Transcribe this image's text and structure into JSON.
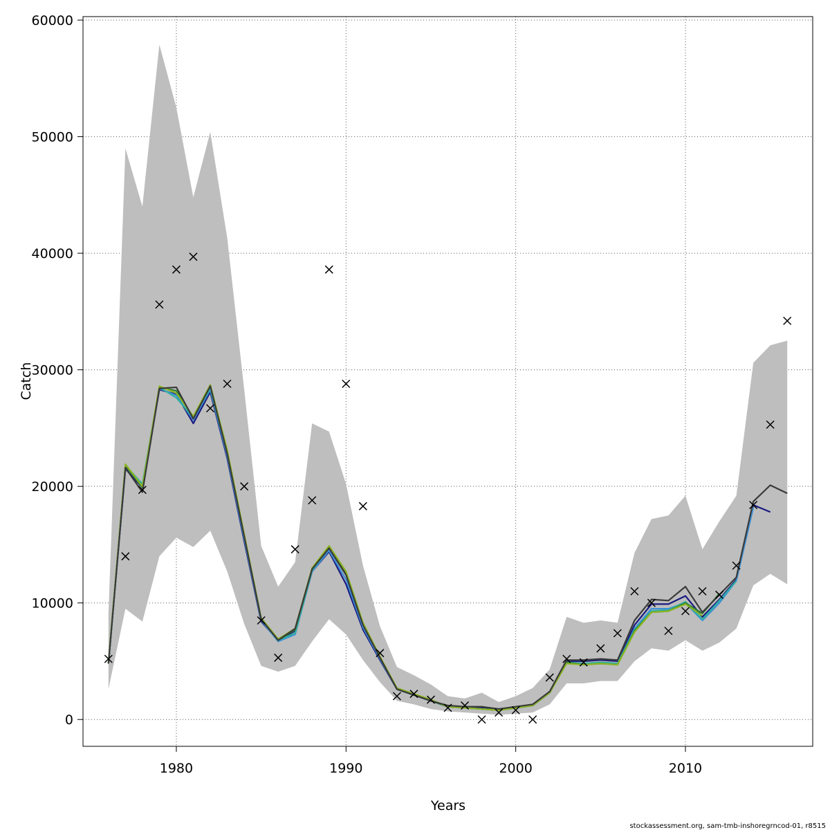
{
  "chart_data": {
    "type": "line",
    "xlabel": "Years",
    "ylabel": "Catch",
    "xlim": [
      1974.5,
      2017.5
    ],
    "ylim": [
      -2300,
      60300
    ],
    "xticks": [
      1980,
      1990,
      2000,
      2010
    ],
    "yticks": [
      0,
      10000,
      20000,
      30000,
      40000,
      50000,
      60000
    ],
    "grid": true,
    "footer": "stockassessment.org, sam-tmb-inshoregrncod-01, r8515",
    "colors": {
      "band": "#bebebe",
      "main": "#3a3a3a",
      "observed": "#000000"
    },
    "confidence_band": {
      "years": [
        1976,
        1977,
        1978,
        1979,
        1980,
        1981,
        1982,
        1983,
        1984,
        1985,
        1986,
        1987,
        1988,
        1989,
        1990,
        1991,
        1992,
        1993,
        1994,
        1995,
        1996,
        1997,
        1998,
        1999,
        2000,
        2001,
        2002,
        2003,
        2004,
        2005,
        2006,
        2007,
        2008,
        2009,
        2010,
        2011,
        2012,
        2013,
        2014,
        2015,
        2016
      ],
      "lower": [
        2600,
        9500,
        8400,
        14000,
        15600,
        14800,
        16200,
        12700,
        8200,
        4600,
        4100,
        4600,
        6700,
        8600,
        7300,
        5100,
        3200,
        1600,
        1300,
        900,
        700,
        600,
        500,
        400,
        500,
        600,
        1300,
        3100,
        3100,
        3300,
        3300,
        5000,
        6100,
        5900,
        6800,
        5900,
        6600,
        7800,
        11500,
        12500,
        11600
      ],
      "upper": [
        9000,
        49000,
        44000,
        57900,
        52500,
        44800,
        50400,
        41300,
        28300,
        14900,
        11400,
        13500,
        25400,
        24700,
        20200,
        13200,
        8000,
        4500,
        3800,
        3000,
        2000,
        1800,
        2300,
        1500,
        2000,
        2700,
        4300,
        8800,
        8300,
        8500,
        8300,
        14300,
        17200,
        17500,
        19200,
        14600,
        17000,
        19200,
        30600,
        32100,
        32500
      ]
    },
    "series": [
      {
        "name": "main",
        "color": "#3a3a3a",
        "years": [
          1976,
          1977,
          1978,
          1979,
          1980,
          1981,
          1982,
          1983,
          1984,
          1985,
          1986,
          1987,
          1988,
          1989,
          1990,
          1991,
          1992,
          1993,
          1994,
          1995,
          1996,
          1997,
          1998,
          1999,
          2000,
          2001,
          2002,
          2003,
          2004,
          2005,
          2006,
          2007,
          2008,
          2009,
          2010,
          2011,
          2012,
          2013,
          2014,
          2015,
          2016
        ],
        "values": [
          4800,
          21600,
          19500,
          28400,
          28500,
          25800,
          28600,
          22800,
          15700,
          8600,
          6800,
          7800,
          12900,
          14700,
          12400,
          8100,
          5300,
          2600,
          2100,
          1600,
          1200,
          1100,
          1100,
          900,
          1100,
          1300,
          2400,
          5100,
          5100,
          5200,
          5100,
          8500,
          10300,
          10200,
          11400,
          9200,
          10700,
          12200,
          18700,
          20100,
          19400
        ]
      },
      {
        "name": "retro-1",
        "color": "#1a1a80",
        "years": [
          1976,
          1977,
          1978,
          1979,
          1980,
          1981,
          1982,
          1983,
          1984,
          1985,
          1986,
          1987,
          1988,
          1989,
          1990,
          1991,
          1992,
          1993,
          1994,
          1995,
          1996,
          1997,
          1998,
          1999,
          2000,
          2001,
          2002,
          2003,
          2004,
          2005,
          2006,
          2007,
          2008,
          2009,
          2010,
          2011,
          2012,
          2013,
          2014,
          2015
        ],
        "values": [
          4800,
          21500,
          19900,
          28300,
          27900,
          25400,
          28100,
          22400,
          15300,
          8400,
          6800,
          7600,
          12700,
          14400,
          11600,
          7700,
          5100,
          2600,
          2100,
          1600,
          1100,
          1000,
          1000,
          900,
          1000,
          1200,
          2300,
          5000,
          5000,
          5100,
          5000,
          8100,
          9900,
          9900,
          10600,
          8800,
          10300,
          12000,
          18400,
          17800
        ]
      },
      {
        "name": "retro-2",
        "color": "#3b8fd6",
        "years": [
          1976,
          1977,
          1978,
          1979,
          1980,
          1981,
          1982,
          1983,
          1984,
          1985,
          1986,
          1987,
          1988,
          1989,
          1990,
          1991,
          1992,
          1993,
          1994,
          1995,
          1996,
          1997,
          1998,
          1999,
          2000,
          2001,
          2002,
          2003,
          2004,
          2005,
          2006,
          2007,
          2008,
          2009,
          2010,
          2011,
          2012,
          2013,
          2014
        ],
        "values": [
          4800,
          21700,
          20100,
          28400,
          27800,
          25700,
          28300,
          22600,
          15500,
          8500,
          6700,
          7300,
          12700,
          14500,
          12000,
          7900,
          5200,
          2600,
          2100,
          1600,
          1100,
          1000,
          900,
          800,
          1000,
          1200,
          2300,
          4900,
          4800,
          4900,
          4800,
          7800,
          9500,
          9500,
          10000,
          8500,
          10000,
          11900,
          18200
        ]
      },
      {
        "name": "retro-3",
        "color": "#2fb0a0",
        "years": [
          1976,
          1977,
          1978,
          1979,
          1980,
          1981,
          1982,
          1983,
          1984,
          1985,
          1986,
          1987,
          1988,
          1989,
          1990,
          1991,
          1992,
          1993,
          1994,
          1995,
          1996,
          1997,
          1998,
          1999,
          2000,
          2001,
          2002,
          2003,
          2004,
          2005,
          2006,
          2007,
          2008,
          2009,
          2010,
          2011,
          2012,
          2013
        ],
        "values": [
          4800,
          21800,
          20200,
          28500,
          27600,
          25900,
          28400,
          22800,
          15700,
          8600,
          6800,
          7400,
          12800,
          14700,
          12500,
          8100,
          5300,
          2600,
          2100,
          1600,
          1100,
          1000,
          900,
          800,
          1000,
          1200,
          2300,
          4900,
          4800,
          4900,
          4800,
          7700,
          9300,
          9400,
          10100,
          8600,
          10200,
          11900
        ]
      },
      {
        "name": "retro-4",
        "color": "#2e7d32",
        "years": [
          1976,
          1977,
          1978,
          1979,
          1980,
          1981,
          1982,
          1983,
          1984,
          1985,
          1986,
          1987,
          1988,
          1989,
          1990,
          1991,
          1992,
          1993,
          1994,
          1995,
          1996,
          1997,
          1998,
          1999,
          2000,
          2001,
          2002,
          2003,
          2004,
          2005,
          2006,
          2007,
          2008,
          2009,
          2010,
          2011,
          2012
        ],
        "values": [
          4800,
          21800,
          19900,
          28500,
          28200,
          25900,
          28700,
          23000,
          15800,
          8600,
          6800,
          7700,
          12900,
          14800,
          12600,
          8200,
          5300,
          2600,
          2100,
          1600,
          1100,
          1000,
          900,
          800,
          1000,
          1200,
          2300,
          4900,
          4700,
          4800,
          4700,
          7600,
          9200,
          9300,
          10000,
          9100,
          10800
        ]
      },
      {
        "name": "retro-5",
        "color": "#8bb521",
        "years": [
          1976,
          1977,
          1978,
          1979,
          1980,
          1981,
          1982,
          1983,
          1984,
          1985,
          1986,
          1987,
          1988,
          1989,
          1990,
          1991,
          1992,
          1993,
          1994,
          1995,
          1996,
          1997,
          1998,
          1999,
          2000,
          2001,
          2002,
          2003,
          2004,
          2005,
          2006,
          2007,
          2008,
          2009,
          2010,
          2011
        ],
        "values": [
          4900,
          21900,
          20000,
          28600,
          28000,
          26000,
          28700,
          23100,
          15900,
          8700,
          6900,
          7800,
          13000,
          14900,
          12700,
          8300,
          5400,
          2700,
          2200,
          1700,
          1100,
          1000,
          900,
          800,
          1000,
          1200,
          2300,
          4800,
          4700,
          4800,
          4700,
          7500,
          9200,
          9300,
          9900,
          8900
        ]
      }
    ],
    "observed": {
      "years": [
        1976,
        1977,
        1978,
        1979,
        1980,
        1981,
        1982,
        1983,
        1984,
        1985,
        1986,
        1987,
        1988,
        1989,
        1990,
        1991,
        1992,
        1993,
        1994,
        1995,
        1996,
        1997,
        1998,
        1999,
        2000,
        2001,
        2002,
        2003,
        2004,
        2005,
        2006,
        2007,
        2008,
        2009,
        2010,
        2011,
        2012,
        2013,
        2014,
        2015,
        2016
      ],
      "values": [
        5200,
        14000,
        19700,
        35600,
        38600,
        39700,
        26700,
        28800,
        20000,
        8500,
        5300,
        14600,
        18800,
        38600,
        28800,
        18300,
        5700,
        2000,
        2200,
        1700,
        1000,
        1200,
        0,
        600,
        800,
        0,
        3600,
        5200,
        4900,
        6100,
        7400,
        11000,
        10000,
        7600,
        9300,
        11000,
        10700,
        13200,
        18400,
        25300,
        34200
      ]
    }
  }
}
